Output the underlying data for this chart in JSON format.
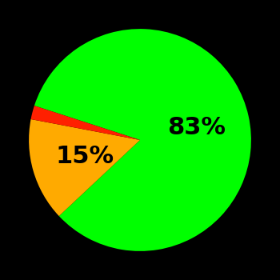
{
  "slices": [
    83,
    15,
    2
  ],
  "colors": [
    "#00ff00",
    "#ffaa00",
    "#ff2000"
  ],
  "background_color": "#000000",
  "startangle": 162,
  "font_size": 22,
  "font_weight": "bold",
  "label_texts": [
    "83%",
    "15%",
    ""
  ],
  "label_radii": [
    0.52,
    0.52,
    0
  ]
}
